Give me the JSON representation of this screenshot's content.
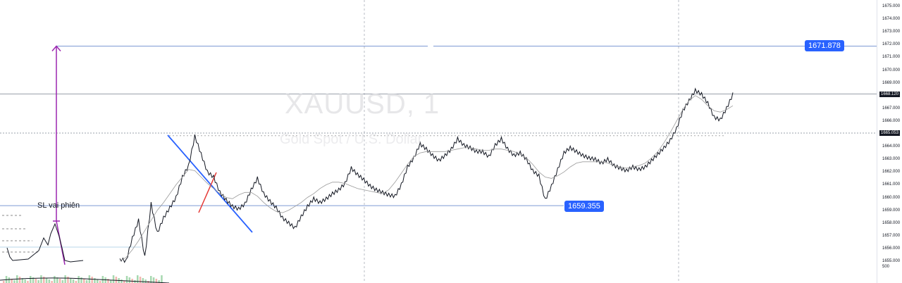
{
  "watermark": {
    "symbol": "XAUUSD, 1",
    "description": "Gold Spot / U.S. Dollar"
  },
  "chart_data": {
    "type": "line",
    "symbol": "XAUUSD",
    "interval": "1",
    "ylim": [
      1655.0,
      1675.0
    ],
    "y_ticks": [
      "1675.000",
      "1674.000",
      "1673.000",
      "1672.000",
      "1671.000",
      "1670.000",
      "1669.000",
      "1668.000",
      "1667.000",
      "1666.000",
      "1665.000",
      "1664.000",
      "1663.000",
      "1662.000",
      "1661.000",
      "1660.000",
      "1659.000",
      "1658.000",
      "1657.000",
      "1656.000",
      "1655.000"
    ],
    "series": [
      {
        "values": [
          1655.2,
          1655.0,
          1656.8,
          1658.2,
          1655.3,
          1659.5,
          1657.2,
          1658.4,
          1659.2,
          1660.0,
          1661.6,
          1662.5,
          1664.8,
          1663.4,
          1662.0,
          1661.6,
          1660.4,
          1659.8,
          1659.3,
          1659.1,
          1659.5,
          1660.6,
          1661.5,
          1660.3,
          1659.7,
          1659.2,
          1658.4,
          1658.0,
          1657.6,
          1658.5,
          1659.3,
          1659.9,
          1659.6,
          1659.9,
          1660.3,
          1660.6,
          1661.1,
          1662.3,
          1661.8,
          1661.4,
          1660.9,
          1660.6,
          1660.4,
          1660.2,
          1660.1,
          1661.0,
          1662.4,
          1663.1,
          1664.2,
          1663.8,
          1663.3,
          1662.9,
          1663.3,
          1663.8,
          1664.6,
          1664.1,
          1663.9,
          1663.6,
          1663.6,
          1663.2,
          1664.1,
          1664.6,
          1663.8,
          1663.3,
          1663.5,
          1663.0,
          1662.1,
          1661.7,
          1659.8,
          1660.9,
          1662.2,
          1663.5,
          1663.9,
          1663.6,
          1663.3,
          1663.1,
          1663.0,
          1662.7,
          1663.0,
          1662.5,
          1662.3,
          1662.1,
          1662.4,
          1662.2,
          1662.4,
          1662.9,
          1663.4,
          1663.9,
          1664.5,
          1665.4,
          1666.8,
          1667.6,
          1668.4,
          1668.1,
          1667.4,
          1666.3,
          1666.1,
          1667.0,
          1668.1
        ],
        "color": "#131722"
      },
      {
        "values": [
          1655.0,
          1655.3,
          1655.9,
          1656.6,
          1657.4,
          1658.2,
          1659.0,
          1659.6,
          1660.3,
          1661.0,
          1661.6,
          1662.2,
          1662.1,
          1661.6,
          1661.1,
          1660.7,
          1660.3,
          1660.0,
          1659.9,
          1660.2,
          1660.4,
          1660.4,
          1660.1,
          1659.6,
          1659.2,
          1658.9,
          1658.8,
          1659.0,
          1659.3,
          1659.6,
          1660.0,
          1660.3,
          1660.7,
          1661.0,
          1661.2,
          1661.2,
          1661.1,
          1660.9,
          1660.7,
          1660.6,
          1660.5,
          1660.4,
          1660.3,
          1660.6,
          1661.2,
          1661.9,
          1662.6,
          1663.2,
          1663.5,
          1663.6,
          1663.6,
          1663.6,
          1663.6,
          1663.7,
          1663.8,
          1663.9,
          1663.9,
          1663.8,
          1663.7,
          1663.7,
          1663.8,
          1663.8,
          1663.7,
          1663.6,
          1663.4,
          1663.1,
          1662.6,
          1662.0,
          1661.6,
          1661.5,
          1661.7,
          1662.0,
          1662.4,
          1662.7,
          1662.8,
          1662.8,
          1662.8,
          1662.8,
          1662.7,
          1662.5,
          1662.4,
          1662.3,
          1662.4,
          1662.5,
          1662.7,
          1663.1,
          1663.6,
          1664.3,
          1665.1,
          1666.0,
          1666.9,
          1667.6,
          1668.0,
          1667.7,
          1667.2,
          1666.8,
          1666.7,
          1666.9,
          1667.2
        ],
        "color": "#9a9a9a"
      }
    ]
  },
  "annotations": {
    "target_price": "1671.878",
    "support_price": "1659.355",
    "last_price": "1668.120",
    "line_price": "1665.053",
    "sl_label": "SL vai phiên",
    "volume_label": "500"
  },
  "colors": {
    "accent": "#2962ff",
    "trend_line": "#2962ff",
    "red_line": "#e53935",
    "purple": "#9c27b0",
    "price_line": "#131722"
  }
}
